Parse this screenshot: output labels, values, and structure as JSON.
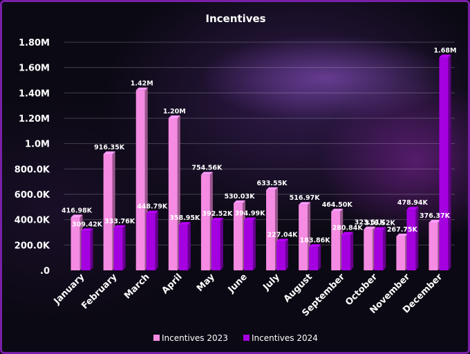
{
  "chart_data": {
    "type": "bar",
    "title": "Incentives",
    "categories": [
      "January",
      "February",
      "March",
      "April",
      "May",
      "June",
      "July",
      "August",
      "September",
      "October",
      "November",
      "December"
    ],
    "series": [
      {
        "name": "Incentives 2023",
        "color": "#f58be2",
        "values": [
          416980,
          916350,
          1420000,
          1200000,
          754560,
          530030,
          633550,
          516970,
          464500,
          323510,
          267750,
          376370
        ],
        "labels": [
          "416.98K",
          "916.35K",
          "1.42M",
          "1.20M",
          "754.56K",
          "530.03K",
          "633.55K",
          "516.97K",
          "464.50K",
          "323.51K",
          "267.75K",
          "376.37K"
        ]
      },
      {
        "name": "Incentives 2024",
        "color": "#a400e0",
        "values": [
          309420,
          333760,
          448790,
          358950,
          392520,
          394990,
          227040,
          183860,
          280840,
          318520,
          478940,
          1680000
        ],
        "labels": [
          "309.42K",
          "333.76K",
          "448.79K",
          "358.95K",
          "392.52K",
          "394.99K",
          "227.04K",
          "183.86K",
          "280.84K",
          "318.52K",
          "478.94K",
          "1.68M"
        ]
      }
    ],
    "ylim": [
      0,
      1800000
    ],
    "yticks": [
      0,
      200000,
      400000,
      600000,
      800000,
      1000000,
      1200000,
      1400000,
      1600000,
      1800000
    ],
    "ytick_labels": [
      ".0",
      "200.0K",
      "400.0K",
      "600.0K",
      "800.0K",
      "1.0M",
      "1.20M",
      "1.40M",
      "1.60M",
      "1.80M"
    ],
    "grid": true,
    "legend_position": "bottom"
  }
}
